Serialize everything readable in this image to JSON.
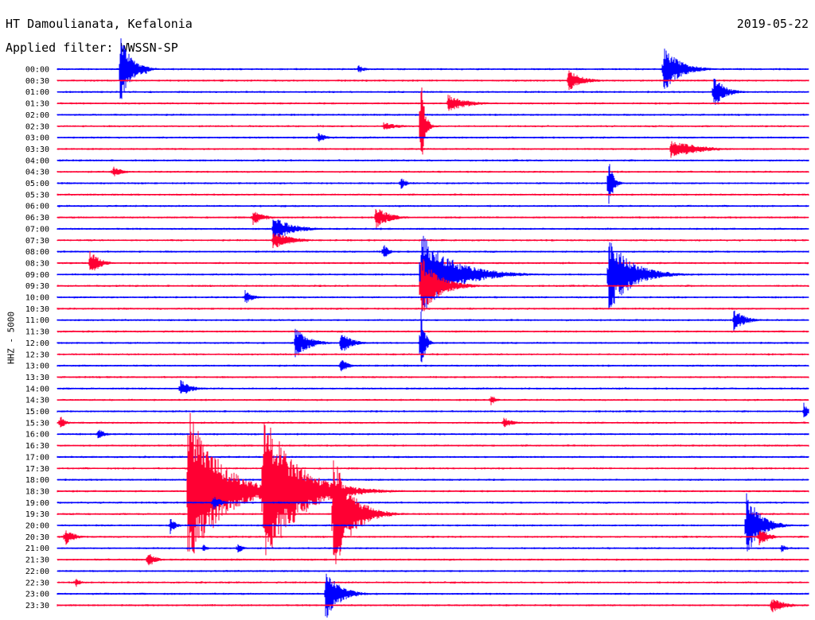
{
  "header": {
    "station": "HT Damoulianata, Kefalonia",
    "date": "2019-05-22",
    "filter": "Applied filter: WWSSN-SP",
    "channel": "HHZ - 5000"
  },
  "chart_data": {
    "type": "line",
    "subtype": "helicorder",
    "colors": {
      "even_trace": "#0000ff",
      "odd_trace": "#ff0033"
    },
    "row_labels": [
      "00:00",
      "00:30",
      "01:00",
      "01:30",
      "02:00",
      "02:30",
      "03:00",
      "03:30",
      "04:00",
      "04:30",
      "05:00",
      "05:30",
      "06:00",
      "06:30",
      "07:00",
      "07:30",
      "08:00",
      "08:30",
      "09:00",
      "09:30",
      "10:00",
      "10:30",
      "11:00",
      "11:30",
      "12:00",
      "12:30",
      "13:00",
      "13:30",
      "14:00",
      "14:30",
      "15:00",
      "15:30",
      "16:00",
      "16:30",
      "17:00",
      "17:30",
      "18:00",
      "18:30",
      "19:00",
      "19:30",
      "20:00",
      "20:30",
      "21:00",
      "21:30",
      "22:00",
      "22:30",
      "23:00",
      "23:30"
    ],
    "events": [
      {
        "row": 0,
        "minute": 2.5,
        "amp": 48,
        "dur": 1.2
      },
      {
        "row": 0,
        "minute": 3.5,
        "amp": 8,
        "dur": 0.5
      },
      {
        "row": 0,
        "minute": 12.0,
        "amp": 6,
        "dur": 0.8
      },
      {
        "row": 0,
        "minute": 24.2,
        "amp": 30,
        "dur": 1.8
      },
      {
        "row": 1,
        "minute": 20.4,
        "amp": 14,
        "dur": 1.5
      },
      {
        "row": 2,
        "minute": 26.2,
        "amp": 22,
        "dur": 1.2
      },
      {
        "row": 3,
        "minute": 15.6,
        "amp": 12,
        "dur": 2.0
      },
      {
        "row": 5,
        "minute": 13.0,
        "amp": 5,
        "dur": 2.0
      },
      {
        "row": 5,
        "minute": 14.5,
        "amp": 75,
        "dur": 0.4
      },
      {
        "row": 6,
        "minute": 10.4,
        "amp": 8,
        "dur": 0.8
      },
      {
        "row": 7,
        "minute": 24.5,
        "amp": 12,
        "dur": 3.0
      },
      {
        "row": 9,
        "minute": 2.2,
        "amp": 8,
        "dur": 1.0
      },
      {
        "row": 10,
        "minute": 13.7,
        "amp": 10,
        "dur": 0.6
      },
      {
        "row": 10,
        "minute": 22.0,
        "amp": 35,
        "dur": 0.5
      },
      {
        "row": 13,
        "minute": 7.8,
        "amp": 10,
        "dur": 1.2
      },
      {
        "row": 13,
        "minute": 12.7,
        "amp": 15,
        "dur": 1.5
      },
      {
        "row": 14,
        "minute": 8.6,
        "amp": 18,
        "dur": 2.0
      },
      {
        "row": 15,
        "minute": 8.6,
        "amp": 12,
        "dur": 2.0
      },
      {
        "row": 16,
        "minute": 13.0,
        "amp": 14,
        "dur": 0.5
      },
      {
        "row": 17,
        "minute": 1.3,
        "amp": 18,
        "dur": 1.0
      },
      {
        "row": 18,
        "minute": 14.5,
        "amp": 55,
        "dur": 3.5
      },
      {
        "row": 18,
        "minute": 22.0,
        "amp": 50,
        "dur": 2.5
      },
      {
        "row": 19,
        "minute": 14.5,
        "amp": 40,
        "dur": 2.0
      },
      {
        "row": 20,
        "minute": 7.5,
        "amp": 10,
        "dur": 0.8
      },
      {
        "row": 22,
        "minute": 27.0,
        "amp": 16,
        "dur": 1.2
      },
      {
        "row": 24,
        "minute": 9.5,
        "amp": 20,
        "dur": 1.5
      },
      {
        "row": 24,
        "minute": 11.3,
        "amp": 15,
        "dur": 1.2
      },
      {
        "row": 24,
        "minute": 14.5,
        "amp": 60,
        "dur": 0.4
      },
      {
        "row": 26,
        "minute": 11.3,
        "amp": 10,
        "dur": 0.8
      },
      {
        "row": 28,
        "minute": 4.9,
        "amp": 12,
        "dur": 1.2
      },
      {
        "row": 29,
        "minute": 17.3,
        "amp": 8,
        "dur": 0.6
      },
      {
        "row": 30,
        "minute": 29.8,
        "amp": 12,
        "dur": 0.5
      },
      {
        "row": 31,
        "minute": 0.1,
        "amp": 10,
        "dur": 0.6
      },
      {
        "row": 31,
        "minute": 17.8,
        "amp": 8,
        "dur": 1.0
      },
      {
        "row": 32,
        "minute": 1.6,
        "amp": 8,
        "dur": 0.8
      },
      {
        "row": 37,
        "minute": 5.2,
        "amp": 110,
        "dur": 3.5
      },
      {
        "row": 37,
        "minute": 8.2,
        "amp": 110,
        "dur": 3.5
      },
      {
        "row": 38,
        "minute": 6.2,
        "amp": 12,
        "dur": 0.8
      },
      {
        "row": 39,
        "minute": 11.0,
        "amp": 80,
        "dur": 2.0
      },
      {
        "row": 40,
        "minute": 4.5,
        "amp": 12,
        "dur": 0.6
      },
      {
        "row": 40,
        "minute": 27.5,
        "amp": 45,
        "dur": 1.5
      },
      {
        "row": 41,
        "minute": 0.3,
        "amp": 12,
        "dur": 1.0
      },
      {
        "row": 41,
        "minute": 28.0,
        "amp": 14,
        "dur": 1.0
      },
      {
        "row": 42,
        "minute": 5.8,
        "amp": 6,
        "dur": 0.5
      },
      {
        "row": 42,
        "minute": 7.2,
        "amp": 8,
        "dur": 0.6
      },
      {
        "row": 42,
        "minute": 28.9,
        "amp": 6,
        "dur": 0.6
      },
      {
        "row": 43,
        "minute": 3.6,
        "amp": 12,
        "dur": 0.8
      },
      {
        "row": 45,
        "minute": 0.7,
        "amp": 8,
        "dur": 0.5
      },
      {
        "row": 46,
        "minute": 10.7,
        "amp": 35,
        "dur": 1.5
      },
      {
        "row": 47,
        "minute": 28.5,
        "amp": 10,
        "dur": 1.5
      }
    ]
  }
}
